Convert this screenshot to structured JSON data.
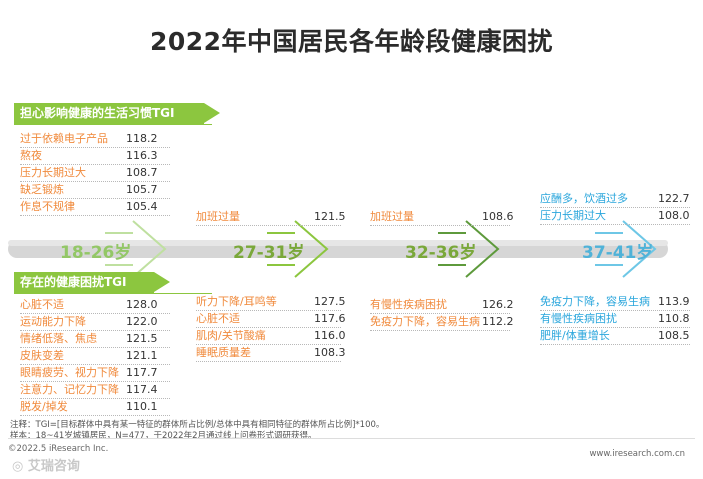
{
  "title": "2022年中国居民各年龄段健康困扰",
  "colors": {
    "green": "#8cc63f",
    "orange": "#f08a3c",
    "blue": "#2aa6dc",
    "timeline": "#d4d4d4"
  },
  "chart_data": {
    "type": "table",
    "sections": [
      {
        "name": "担心影响健康的生活习惯TGI",
        "groups": [
          {
            "age": "18-26岁",
            "items": [
              {
                "label": "过于依赖电子产品",
                "value": 118.2
              },
              {
                "label": "熬夜",
                "value": 116.3
              },
              {
                "label": "压力长期过大",
                "value": 108.7
              },
              {
                "label": "缺乏锻炼",
                "value": 105.7
              },
              {
                "label": "作息不规律",
                "value": 105.4
              }
            ]
          },
          {
            "age": "27-31岁",
            "items": [
              {
                "label": "加班过量",
                "value": 121.5
              }
            ]
          },
          {
            "age": "32-36岁",
            "items": [
              {
                "label": "加班过量",
                "value": 108.6
              }
            ]
          },
          {
            "age": "37-41岁",
            "items": [
              {
                "label": "应酬多，饮酒过多",
                "value": 122.7
              },
              {
                "label": "压力长期过大",
                "value": 108.0
              }
            ]
          }
        ]
      },
      {
        "name": "存在的健康困扰TGI",
        "groups": [
          {
            "age": "18-26岁",
            "items": [
              {
                "label": "心脏不适",
                "value": 128.0
              },
              {
                "label": "运动能力下降",
                "value": 122.0
              },
              {
                "label": "情绪低落、焦虑",
                "value": 121.5
              },
              {
                "label": "皮肤变差",
                "value": 121.1
              },
              {
                "label": "眼睛疲劳、视力下降",
                "value": 117.7
              },
              {
                "label": "注意力、记忆力下降",
                "value": 117.4
              },
              {
                "label": "脱发/掉发",
                "value": 110.1
              }
            ]
          },
          {
            "age": "27-31岁",
            "items": [
              {
                "label": "听力下降/耳鸣等",
                "value": 127.5
              },
              {
                "label": "心脏不适",
                "value": 117.6
              },
              {
                "label": "肌肉/关节酸痛",
                "value": 116.0
              },
              {
                "label": "睡眠质量差",
                "value": 108.3
              }
            ]
          },
          {
            "age": "32-36岁",
            "items": [
              {
                "label": "有慢性疾病困扰",
                "value": 126.2
              },
              {
                "label": "免疫力下降，容易生病",
                "value": 112.2
              }
            ]
          },
          {
            "age": "37-41岁",
            "items": [
              {
                "label": "免疫力下降，容易生病",
                "value": 113.9
              },
              {
                "label": "有慢性疾病困扰",
                "value": 110.8
              },
              {
                "label": "肥胖/体重增长",
                "value": 108.5
              }
            ]
          }
        ]
      }
    ]
  },
  "notes": {
    "line1": "注释：TGI=[目标群体中具有某一特征的群体所占比例/总体中具有相同特征的群体所占比例]*100。",
    "line2": "样本：18~41岁城镇居民，N=477，于2022年2月通过线上问卷形式调研获得。"
  },
  "footer": {
    "copyright": "©2022.5 iResearch Inc.",
    "url": "www.iresearch.com.cn",
    "watermark": "艾瑞咨询"
  }
}
